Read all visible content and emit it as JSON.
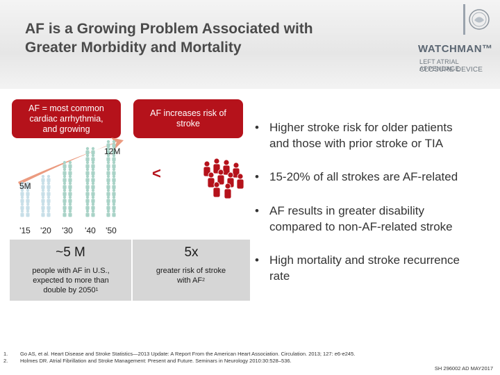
{
  "title": {
    "line1": "AF is a Growing Problem Associated with",
    "line2": "Greater Morbidity and Mortality"
  },
  "logo": {
    "name": "WATCHMAN™",
    "sub1": "LEFT ATRIAL APPENDAGE",
    "sub2": "CLOSURE DEVICE",
    "seal_icon": "seal-logo-icon"
  },
  "left_box": {
    "line1": "AF = most common",
    "line2": "cardiac arrhythmia,",
    "line3": "and growing"
  },
  "mid_box": {
    "line1": "AF increases risk of",
    "line2": "stroke"
  },
  "chart_data": {
    "type": "bar",
    "categories": [
      "'15",
      "'20",
      "'30",
      "'40",
      "'50"
    ],
    "values": [
      5,
      6,
      8,
      10,
      12
    ],
    "annotations": {
      "start": "5M",
      "end": "12M"
    },
    "unit": "M",
    "colors": {
      "arrow": "#e88a6a",
      "people_light": "#c8dfe8",
      "people_mid": "#a9d3c7"
    }
  },
  "comparison": {
    "symbol": "<",
    "people_color": "#b5121b"
  },
  "stats": {
    "left_big": "~5 M",
    "left_small_l1": "people with AF in U.S.,",
    "left_small_l2": "expected to more than",
    "left_small_l3": "double by 2050",
    "left_sup": "1",
    "right_big": "5x",
    "right_small_l1": "greater risk of stroke",
    "right_small_l2": "with AF",
    "right_sup": "2"
  },
  "bullets": [
    {
      "dot": "•",
      "l1": "Higher stroke risk for older patients",
      "l2": "and those with prior stroke or TIA"
    },
    {
      "dot": "•",
      "l1": "15-20% of all strokes are AF-related",
      "l2": ""
    },
    {
      "dot": "•",
      "l1": "AF results in greater disability",
      "l2": "compared to non-AF-related stroke"
    },
    {
      "dot": "•",
      "l1": "High mortality and stroke recurrence",
      "l2": "rate"
    }
  ],
  "references": [
    {
      "num": "1.",
      "text": "Go AS, et al. Heart Disease and Stroke Statistics—2013 Update: A Report From the American Heart Association. Circulation. 2013; 127: e6-e245."
    },
    {
      "num": "2.",
      "text": "Holmes DR. Atrial Fibrillation and Stroke Management: Present and Future. Seminars in Neurology 2010:30:528–536."
    }
  ],
  "footer_code": "SH 296002 AD MAY2017"
}
